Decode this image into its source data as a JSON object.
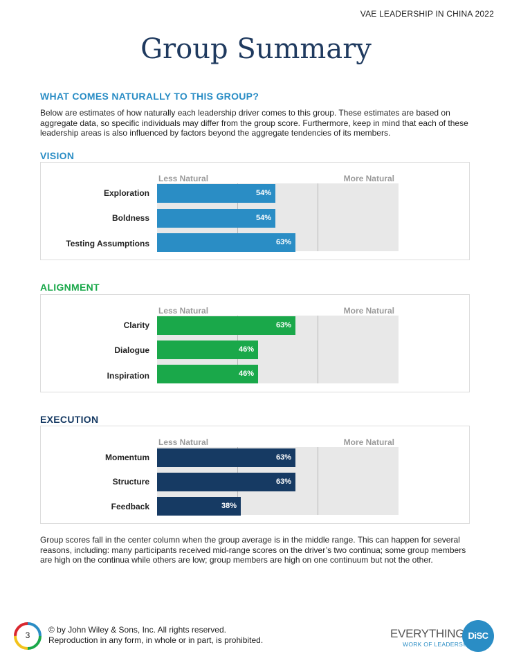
{
  "header": {
    "report_title": "VAE LEADERSHIP IN CHINA 2022"
  },
  "page_title": "Group Summary",
  "intro": {
    "heading": "WHAT COMES NATURALLY TO THIS GROUP?",
    "text": "Below are estimates of how naturally each leadership driver comes to this group. These estimates are based on aggregate data, so specific individuals may differ from the group score. Furthermore, keep in mind that each of these leadership areas is also influenced by factors beyond the aggregate tendencies of its members."
  },
  "scale": {
    "less_label": "Less Natural",
    "more_label": "More Natural"
  },
  "sections": [
    {
      "title": "VISION",
      "color": "#2a8dc5",
      "rows": [
        {
          "label": "Exploration",
          "value": 54,
          "value_label": "54%"
        },
        {
          "label": "Boldness",
          "value": 54,
          "value_label": "54%"
        },
        {
          "label": "Testing Assumptions",
          "value": 63,
          "value_label": "63%"
        }
      ]
    },
    {
      "title": "ALIGNMENT",
      "color": "#1aa84a",
      "rows": [
        {
          "label": "Clarity",
          "value": 63,
          "value_label": "63%"
        },
        {
          "label": "Dialogue",
          "value": 46,
          "value_label": "46%"
        },
        {
          "label": "Inspiration",
          "value": 46,
          "value_label": "46%"
        }
      ]
    },
    {
      "title": "EXECUTION",
      "color": "#163a63",
      "rows": [
        {
          "label": "Momentum",
          "value": 63,
          "value_label": "63%"
        },
        {
          "label": "Structure",
          "value": 63,
          "value_label": "63%"
        },
        {
          "label": "Feedback",
          "value": 38,
          "value_label": "38%"
        }
      ]
    }
  ],
  "bottom_text": "Group scores fall in the center column when the group average is in the middle range. This can happen for several reasons, including: many participants received mid-range scores on the driver’s two continua; some group members are high on the continua while others are low; group members are high on one continuum but not the other.",
  "footer": {
    "page_number": "3",
    "copyright_line1": "© by John Wiley & Sons, Inc. All rights reserved.",
    "copyright_line2": "Reproduction in any form, in whole or in part, is prohibited.",
    "brand_word": "EVERYTHING",
    "brand_sub": "WORK OF LEADERS®",
    "brand_badge": "DiSC"
  }
}
